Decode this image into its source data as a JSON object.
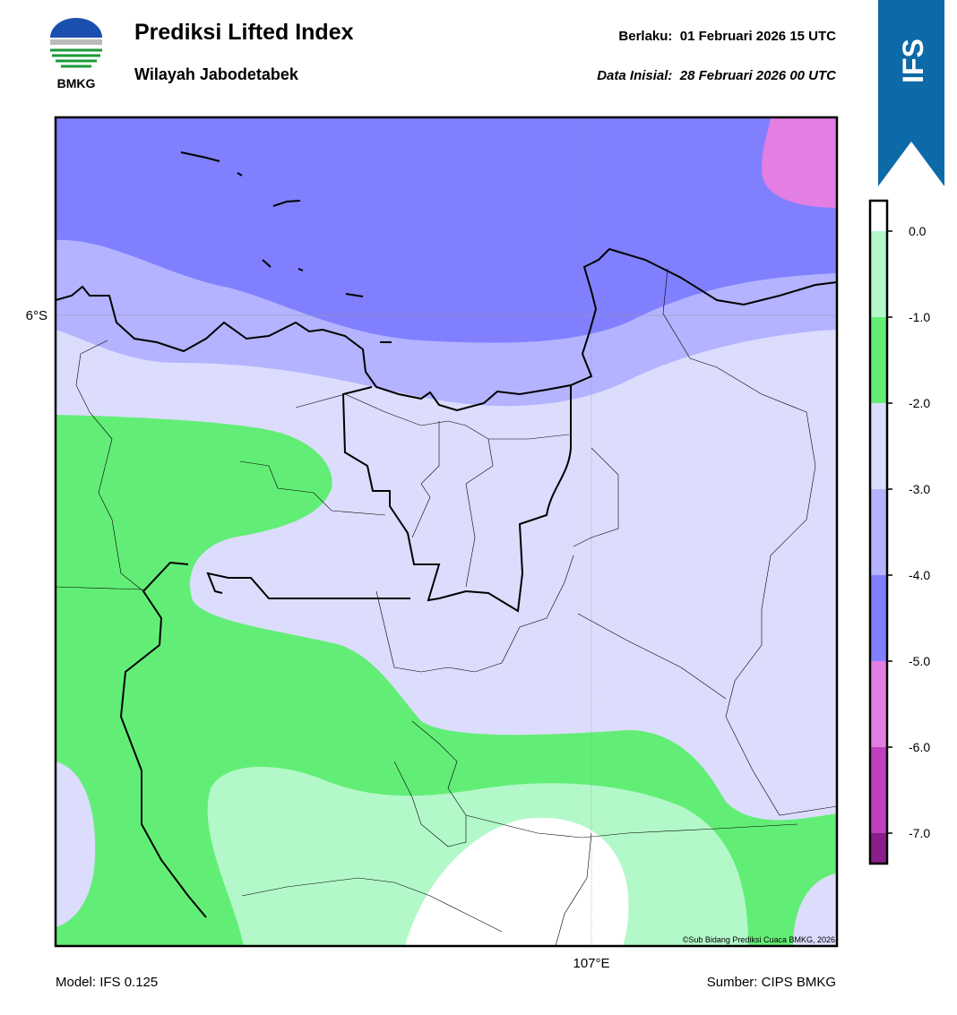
{
  "header": {
    "title": "Prediksi Lifted Index",
    "subtitle": "Wilayah Jabodetabek",
    "valid": "Berlaku:  01 Februari 2026 15 UTC",
    "init": "Data Inisial:  28 Februari 2026 00 UTC",
    "logo": "BMKG",
    "badge": "IFS"
  },
  "map": {
    "lat_label": "6°S",
    "lon_label": "107°E",
    "credit": "©Sub Bidang Prediksi Cuaca BMKG, 2026"
  },
  "colorbar": {
    "ticks": [
      "0.0",
      "-1.0",
      "-2.0",
      "-3.0",
      "-4.0",
      "-5.0",
      "-6.0",
      "-7.0"
    ],
    "colors": [
      "#ffffff",
      "#b3f8c9",
      "#62ee76",
      "#dcdcfd",
      "#b3b3ff",
      "#8080ff",
      "#e37ee3",
      "#c040c0",
      "#8a1e8a"
    ]
  },
  "footer": {
    "model": "Model: IFS 0.125",
    "source": "Sumber: CIPS BMKG"
  }
}
